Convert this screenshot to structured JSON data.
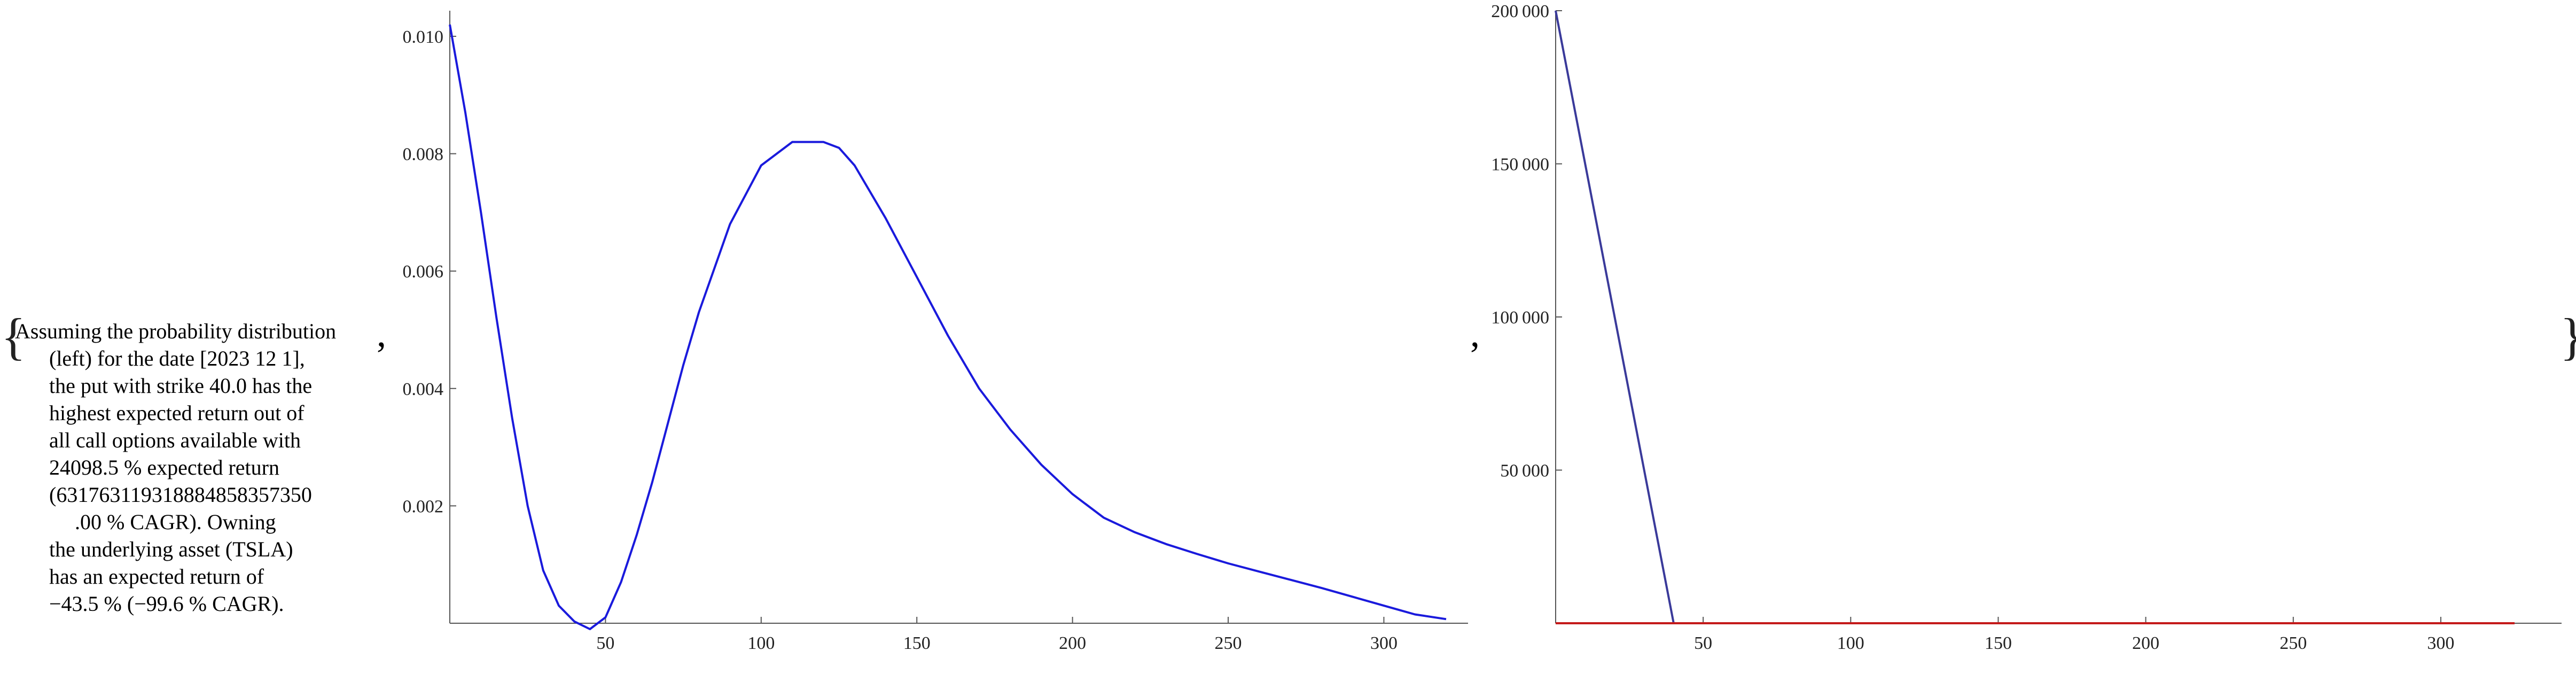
{
  "brackets": {
    "open": "{",
    "close": "}"
  },
  "separator": ",",
  "description_lines": [
    "Assuming the probability distribution",
    "(left) for the date [2023 12 1],",
    "the put with strike 40.0 has the",
    "highest expected return out of",
    "all call options available with",
    "24098.5 % expected return",
    "(631763119318884858357350",
    ".00 % CAGR). Owning",
    "the underlying asset (TSLA)",
    "has an expected return of",
    "−43.5 % (−99.6 % CAGR)."
  ],
  "colors": {
    "density": "#1a1adc",
    "payoff": "#3a3a9a",
    "zero_line": "#c41a1a",
    "axis": "#555555"
  },
  "chart_data": [
    {
      "type": "line",
      "title": "",
      "xlabel": "",
      "ylabel": "",
      "xlim": [
        0,
        320
      ],
      "ylim": [
        0,
        0.0102
      ],
      "x_ticks": [
        50,
        100,
        150,
        200,
        250,
        300
      ],
      "x_tick_labels": [
        "50",
        "100",
        "150",
        "200",
        "250",
        "300"
      ],
      "y_ticks": [
        0.002,
        0.004,
        0.006,
        0.008,
        0.01
      ],
      "y_tick_labels": [
        "0.002",
        "0.004",
        "0.006",
        "0.008",
        "0.010"
      ],
      "grid": false,
      "series": [
        {
          "x": [
            0,
            5,
            10,
            15,
            20,
            25,
            30,
            35,
            40,
            45,
            50,
            55,
            60,
            65,
            70,
            75,
            80,
            90,
            100,
            110,
            115,
            120,
            125,
            130,
            140,
            150,
            160,
            170,
            180,
            190,
            200,
            210,
            220,
            230,
            240,
            250,
            260,
            270,
            280,
            290,
            300,
            310,
            320
          ],
          "y": [
            0.0102,
            0.0087,
            0.007,
            0.0052,
            0.0035,
            0.002,
            0.0009,
            0.0003,
            3e-05,
            -0.0001,
            0.0001,
            0.0007,
            0.0015,
            0.0024,
            0.0034,
            0.0044,
            0.0053,
            0.0068,
            0.0078,
            0.0082,
            0.0082,
            0.0082,
            0.0081,
            0.0078,
            0.0069,
            0.0059,
            0.0049,
            0.004,
            0.0033,
            0.0027,
            0.0022,
            0.0018,
            0.00155,
            0.00135,
            0.00118,
            0.00102,
            0.00088,
            0.00074,
            0.0006,
            0.00045,
            0.0003,
            0.00015,
            7e-05
          ]
        }
      ]
    },
    {
      "type": "line",
      "title": "",
      "xlabel": "",
      "ylabel": "",
      "xlim": [
        0,
        325
      ],
      "ylim": [
        0,
        200000
      ],
      "x_ticks": [
        50,
        100,
        150,
        200,
        250,
        300
      ],
      "x_tick_labels": [
        "50",
        "100",
        "150",
        "200",
        "250",
        "300"
      ],
      "y_ticks": [
        50000,
        100000,
        150000,
        200000
      ],
      "y_tick_labels": [
        "50 000",
        "100 000",
        "150 000",
        "200 000"
      ],
      "grid": false,
      "series": [
        {
          "x": [
            0,
            40
          ],
          "y": [
            200000,
            0
          ]
        },
        {
          "x": [
            0,
            325
          ],
          "y": [
            0,
            0
          ]
        }
      ]
    }
  ]
}
